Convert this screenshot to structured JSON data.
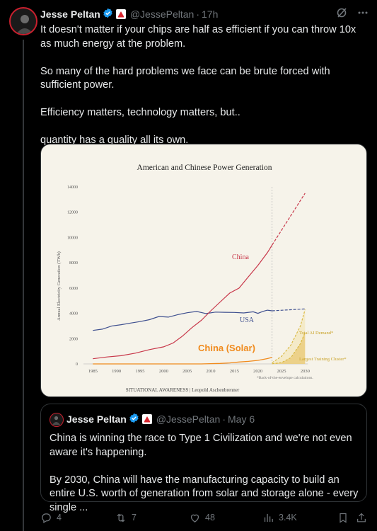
{
  "tweet": {
    "author_name": "Jesse Peltan",
    "handle": "@JessePeltan",
    "time": "17h",
    "text": "It doesn't matter if your chips are half as efficient if you can throw 10x as much energy at the problem.\n\nSo many of the hard problems we face can be brute forced with sufficient power.\n\nEfficiency matters, technology matters, but..\n\nquantity has a quality all its own."
  },
  "colors": {
    "verified": "#1d9bf0",
    "china": "#c8374a",
    "usa": "#3e4f8f",
    "solar": "#f08a1c",
    "ai": "#d8b63a"
  },
  "chart_data": {
    "type": "line",
    "title": "American and Chinese Power Generation",
    "ylabel": "Annual Electricity Generation (TWh)",
    "xlabel": "",
    "xlim": [
      1983,
      2031
    ],
    "ylim": [
      0,
      14000
    ],
    "x_ticks": [
      "1985",
      "1990",
      "1995",
      "2000",
      "2005",
      "2010",
      "2015",
      "2020",
      "2025",
      "2030"
    ],
    "y_ticks": [
      "0",
      "2000",
      "4000",
      "6000",
      "8000",
      "10000",
      "12000",
      "14000"
    ],
    "projection_start": 2023,
    "series": [
      {
        "name": "China",
        "x": [
          1985,
          1988,
          1991,
          1994,
          1997,
          2000,
          2002,
          2004,
          2006,
          2008,
          2010,
          2012,
          2014,
          2016,
          2018,
          2020,
          2022,
          2023
        ],
        "values": [
          410,
          550,
          650,
          850,
          1130,
          1350,
          1650,
          2200,
          2870,
          3450,
          4200,
          4900,
          5600,
          6000,
          6900,
          7800,
          8800,
          9400
        ]
      },
      {
        "name": "China projection",
        "x": [
          2023,
          2030
        ],
        "values": [
          9400,
          13500
        ]
      },
      {
        "name": "USA",
        "x": [
          1985,
          1987,
          1989,
          1991,
          1993,
          1995,
          1997,
          1999,
          2001,
          2003,
          2005,
          2007,
          2009,
          2011,
          2013,
          2015,
          2017,
          2019,
          2020,
          2021,
          2022,
          2023
        ],
        "values": [
          2650,
          2750,
          3000,
          3100,
          3230,
          3350,
          3500,
          3750,
          3700,
          3900,
          4050,
          4150,
          3980,
          4100,
          4080,
          4070,
          4030,
          4120,
          4000,
          4150,
          4250,
          4200
        ]
      },
      {
        "name": "USA projection",
        "x": [
          2023,
          2030
        ],
        "values": [
          4200,
          4350
        ]
      },
      {
        "name": "China (Solar)",
        "x": [
          1985,
          2008,
          2010,
          2012,
          2014,
          2016,
          2018,
          2020,
          2022,
          2023
        ],
        "values": [
          0,
          0,
          20,
          40,
          80,
          150,
          200,
          280,
          420,
          520
        ]
      },
      {
        "name": "Total AI Demand",
        "x": [
          2023,
          2025,
          2027,
          2029,
          2030
        ],
        "values": [
          100,
          600,
          1500,
          3000,
          4300
        ]
      },
      {
        "name": "Largest Training Cluster",
        "x": [
          2023,
          2025,
          2027,
          2029,
          2030
        ],
        "values": [
          10,
          100,
          500,
          1600,
          2500
        ]
      }
    ],
    "annotations": {
      "china": "China",
      "usa": "USA",
      "solar": "China (Solar)",
      "ai": "Total AI Demand*",
      "cluster": "Largest Training Cluster*",
      "footnote": "*Back-of-the-envelope calculations.",
      "source": "SITUATIONAL AWARENESS | Leopold Aschenbrenner"
    }
  },
  "quote": {
    "author_name": "Jesse Peltan",
    "handle": "@JessePeltan",
    "time": "May 6",
    "text": "China is winning the race to Type 1 Civilization and we're not even aware it's happening.\n\nBy 2030, China will have the manufacturing capacity to build an entire U.S. worth of generation from solar and storage alone - every single ..."
  },
  "actions": {
    "replies": "4",
    "reposts": "7",
    "likes": "48",
    "views": "3.4K"
  }
}
